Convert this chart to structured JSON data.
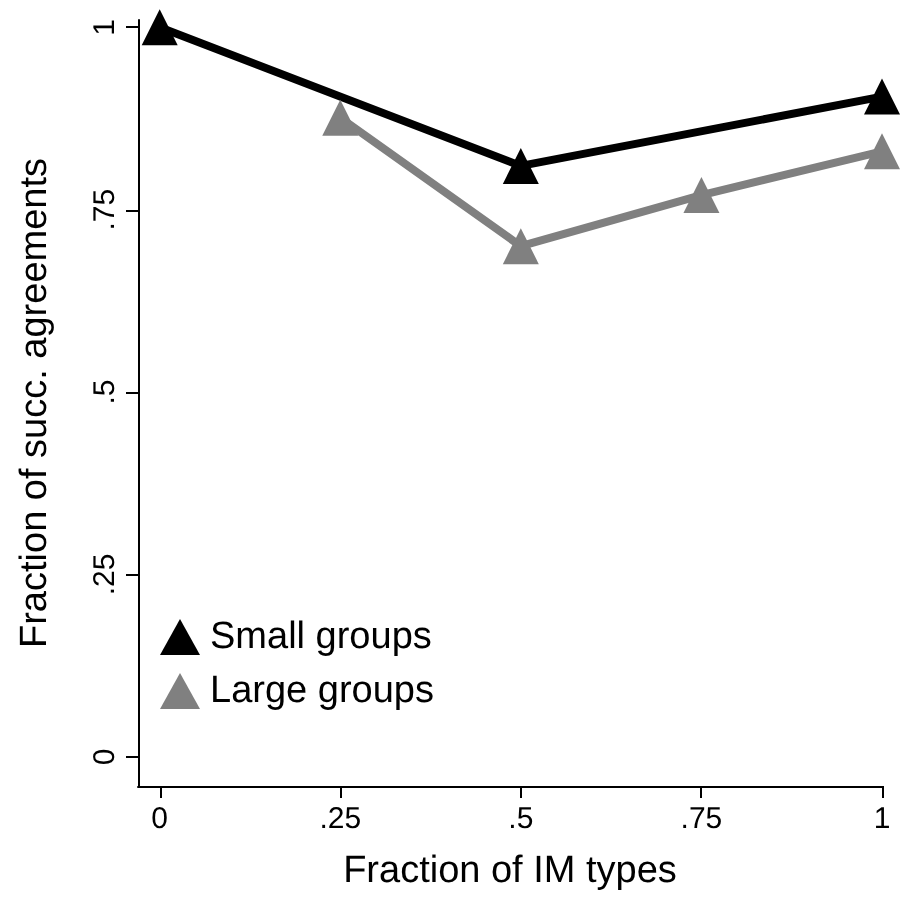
{
  "chart_data": {
    "type": "line",
    "xlabel": "Fraction of IM types",
    "ylabel": "Fraction of succ. agreements",
    "xlim": [
      -0.03,
      1
    ],
    "xticks": [
      {
        "value": 0,
        "label": "0"
      },
      {
        "value": 0.25,
        "label": ".25"
      },
      {
        "value": 0.5,
        "label": ".5"
      },
      {
        "value": 0.75,
        "label": ".75"
      },
      {
        "value": 1,
        "label": "1"
      }
    ],
    "ylim": [
      -0.04,
      1.01
    ],
    "yticks": [
      {
        "value": 0,
        "label": "0"
      },
      {
        "value": 0.25,
        "label": ".25"
      },
      {
        "value": 0.5,
        "label": ".5"
      },
      {
        "value": 0.75,
        "label": ".75"
      },
      {
        "value": 1,
        "label": "1"
      }
    ],
    "series": [
      {
        "name": "Small groups",
        "color": "#000000",
        "x": [
          0,
          0.5,
          1
        ],
        "values": [
          1,
          0.81,
          0.905
        ]
      },
      {
        "name": "Large groups",
        "color": "#808080",
        "x": [
          0.25,
          0.5,
          0.75,
          1
        ],
        "values": [
          0.876,
          0.7,
          0.77,
          0.83
        ]
      }
    ],
    "marker": "triangle",
    "line_style": "solid",
    "grid": false,
    "legend": "bottom left"
  }
}
